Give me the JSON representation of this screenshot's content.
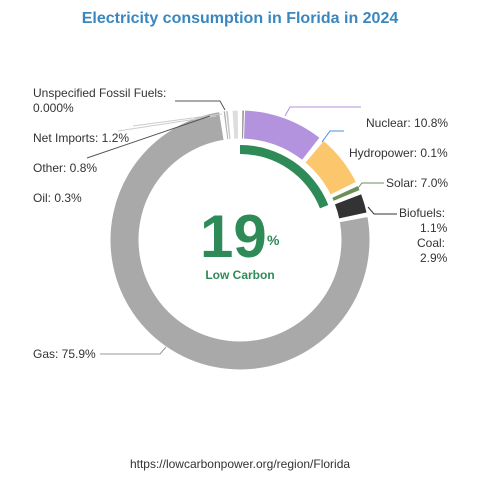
{
  "chart_data": {
    "type": "pie",
    "title": "Electricity consumption in Florida in 2024",
    "categories": [
      "Nuclear",
      "Hydropower",
      "Solar",
      "Biofuels",
      "Coal",
      "Gas",
      "Oil",
      "Other",
      "Net Imports",
      "Unspecified Fossil Fuels"
    ],
    "values": [
      10.8,
      0.1,
      7.0,
      1.1,
      2.9,
      75.9,
      0.3,
      0.8,
      1.2,
      0.0
    ],
    "labels": {
      "nuclear": "Nuclear: 10.8%",
      "hydropower": "Hydropower: 0.1%",
      "solar": "Solar: 7.0%",
      "biofuels_name": "Biofuels:",
      "biofuels_value": "1.1%",
      "coal_name": "Coal:",
      "coal_value": "2.9%",
      "gas": "Gas: 75.9%",
      "oil": "Oil: 0.3%",
      "other": "Other: 0.8%",
      "net_imports": "Net Imports: 1.2%",
      "unspecified_name": "Unspecified Fossil Fuels:",
      "unspecified_value": "0.000%"
    },
    "colors": [
      "#b393de",
      "#4a90d9",
      "#fcc66d",
      "#6b8f57",
      "#333333",
      "#a9a9a9",
      "#b0b0b0",
      "#c8c8c8",
      "#dddddd",
      "#999999"
    ],
    "center_value": "19",
    "center_unit": "%",
    "center_label": "Low Carbon",
    "low_carbon_share": 19,
    "low_carbon_color": "#2e8b57"
  },
  "footer": "https://lowcarbonpower.org/region/Florida"
}
